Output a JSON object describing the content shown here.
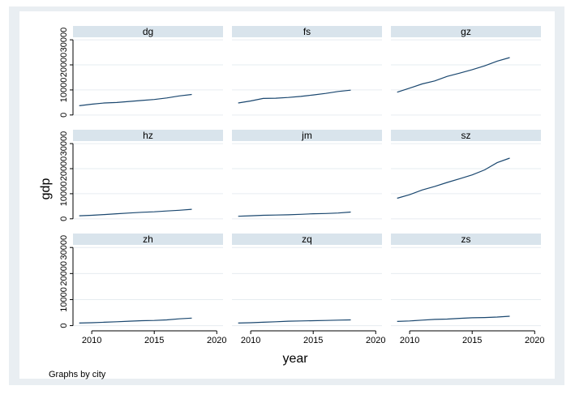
{
  "chart_data": {
    "type": "line",
    "layout": "small-multiples-3x3",
    "xlabel": "year",
    "ylabel": "gdp",
    "xlim": [
      2008.5,
      2020.5
    ],
    "ylim": [
      -2000,
      31000
    ],
    "xticks": [
      2010,
      2015,
      2020
    ],
    "yticks": [
      0,
      10000,
      20000,
      30000
    ],
    "ytick_labels": [
      "0",
      "10000",
      "20000",
      "30000"
    ],
    "grid": true,
    "note": "Graphs by city",
    "x": [
      2009,
      2010,
      2011,
      2012,
      2013,
      2014,
      2015,
      2016,
      2017,
      2018
    ],
    "panels": [
      {
        "name": "dg",
        "values": [
          3700,
          4300,
          4800,
          5000,
          5400,
          5800,
          6200,
          6800,
          7600,
          8200
        ]
      },
      {
        "name": "fs",
        "values": [
          4800,
          5600,
          6600,
          6700,
          7000,
          7400,
          8000,
          8600,
          9400,
          9900
        ]
      },
      {
        "name": "gz",
        "values": [
          9100,
          10700,
          12400,
          13600,
          15400,
          16700,
          18100,
          19600,
          21500,
          22900
        ]
      },
      {
        "name": "hz",
        "values": [
          1200,
          1400,
          1700,
          2000,
          2300,
          2600,
          2800,
          3100,
          3400,
          3800
        ]
      },
      {
        "name": "jm",
        "values": [
          1000,
          1200,
          1400,
          1500,
          1600,
          1800,
          2000,
          2100,
          2300,
          2700
        ]
      },
      {
        "name": "sz",
        "values": [
          8200,
          9600,
          11500,
          12900,
          14500,
          16000,
          17500,
          19500,
          22400,
          24200
        ]
      },
      {
        "name": "zh",
        "values": [
          1000,
          1100,
          1300,
          1500,
          1700,
          1900,
          2000,
          2200,
          2600,
          2900
        ]
      },
      {
        "name": "zq",
        "values": [
          1000,
          1100,
          1300,
          1500,
          1700,
          1800,
          1900,
          2000,
          2100,
          2200
        ]
      },
      {
        "name": "zs",
        "values": [
          1600,
          1800,
          2100,
          2400,
          2500,
          2800,
          3000,
          3100,
          3300,
          3600
        ]
      }
    ]
  }
}
